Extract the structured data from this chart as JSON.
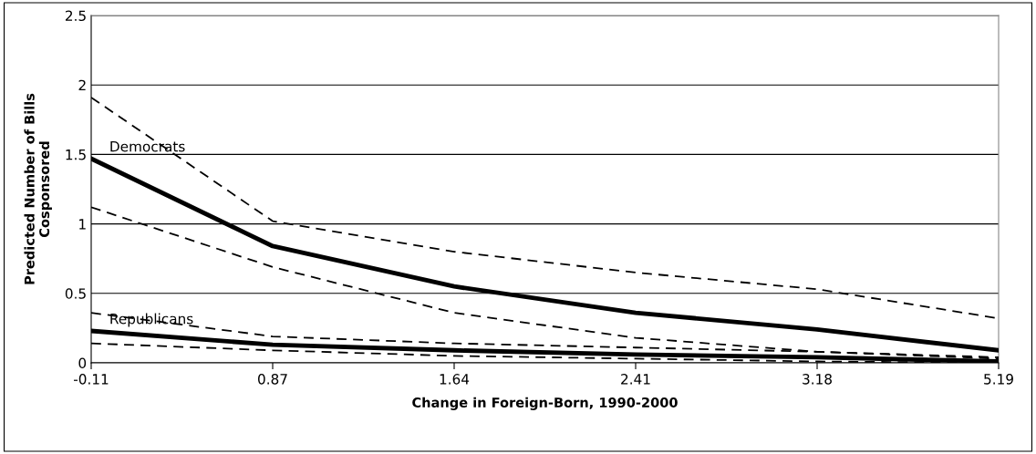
{
  "chart_data": {
    "type": "line",
    "xlabel": "Change in Foreign-Born, 1990-2000",
    "ylabel": "Predicted Number of Bills\nCosponsored",
    "categories": [
      "-0.11",
      "0.87",
      "1.64",
      "2.41",
      "3.18",
      "5.19"
    ],
    "series": [
      {
        "name": "Democrats",
        "color": "#000000",
        "line_style": "solid",
        "values": [
          1.47,
          0.84,
          0.55,
          0.36,
          0.24,
          0.09
        ]
      },
      {
        "color": "#000000",
        "line_style": "dashed",
        "values": [
          1.91,
          1.02,
          0.8,
          0.65,
          0.53,
          0.32
        ]
      },
      {
        "color": "#000000",
        "line_style": "dashed",
        "values": [
          1.12,
          0.69,
          0.36,
          0.18,
          0.08,
          0.03
        ]
      },
      {
        "name": "Republicans",
        "color": "#000000",
        "line_style": "solid",
        "values": [
          0.23,
          0.13,
          0.09,
          0.06,
          0.04,
          0.01
        ]
      },
      {
        "color": "#000000",
        "line_style": "dashed",
        "values": [
          0.36,
          0.19,
          0.14,
          0.11,
          0.08,
          0.04
        ]
      },
      {
        "color": "#000000",
        "line_style": "dashed",
        "values": [
          0.14,
          0.09,
          0.05,
          0.03,
          0.01,
          0.0
        ]
      }
    ],
    "ylim": [
      0,
      2.5
    ],
    "yticks": [
      0,
      0.5,
      1,
      1.5,
      2,
      2.5
    ],
    "grid": "y",
    "legend": false,
    "marker": "none"
  }
}
